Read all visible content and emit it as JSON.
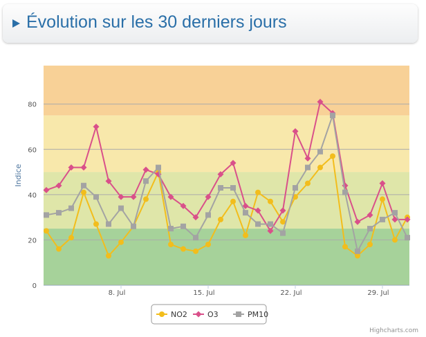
{
  "header": {
    "title": "Évolution sur les 30 derniers jours"
  },
  "chart_data": {
    "type": "line",
    "title": "Évolution sur les 30 derniers jours",
    "xlabel": "",
    "ylabel": "Indice",
    "x": [
      "2 Jul",
      "3 Jul",
      "4 Jul",
      "5 Jul",
      "6 Jul",
      "7 Jul",
      "8 Jul",
      "9 Jul",
      "10 Jul",
      "11 Jul",
      "12 Jul",
      "13 Jul",
      "14 Jul",
      "15 Jul",
      "16 Jul",
      "17 Jul",
      "18 Jul",
      "19 Jul",
      "20 Jul",
      "21 Jul",
      "22 Jul",
      "23 Jul",
      "24 Jul",
      "25 Jul",
      "26 Jul",
      "27 Jul",
      "28 Jul",
      "29 Jul",
      "30 Jul",
      "31 Jul"
    ],
    "xticks": [
      {
        "index": 6,
        "label": "8. Jul"
      },
      {
        "index": 13,
        "label": "15. Jul"
      },
      {
        "index": 20,
        "label": "22. Jul"
      },
      {
        "index": 27,
        "label": "29. Jul"
      }
    ],
    "yticks": [
      0,
      20,
      40,
      60,
      80
    ],
    "ylim": [
      0,
      97
    ],
    "grid": true,
    "bands": [
      {
        "from": 0,
        "to": 25,
        "color": "#a6d29a"
      },
      {
        "from": 25,
        "to": 50,
        "color": "#dfe6a9"
      },
      {
        "from": 50,
        "to": 75,
        "color": "#f8e8ab"
      },
      {
        "from": 75,
        "to": 100,
        "color": "#f8d197"
      }
    ],
    "legend_placement": "bottom-center",
    "series": [
      {
        "name": "NO2",
        "color": "#f2bd1c",
        "marker": "circle",
        "values": [
          24,
          16,
          21,
          41,
          27,
          13,
          19,
          26,
          38,
          50,
          18,
          16,
          15,
          18,
          29,
          37,
          22,
          41,
          37,
          28,
          39,
          45,
          52,
          57,
          17,
          13,
          18,
          38,
          20,
          30
        ]
      },
      {
        "name": "O3",
        "color": "#d9508a",
        "marker": "diamond",
        "values": [
          42,
          44,
          52,
          52,
          70,
          46,
          39,
          39,
          51,
          49,
          39,
          35,
          30,
          39,
          49,
          54,
          35,
          33,
          24,
          33,
          68,
          56,
          81,
          76,
          44,
          28,
          31,
          45,
          29,
          29
        ]
      },
      {
        "name": "PM10",
        "color": "#a3a3a3",
        "marker": "square",
        "values": [
          31,
          32,
          34,
          44,
          39,
          27,
          34,
          26,
          46,
          52,
          25,
          26,
          21,
          31,
          43,
          43,
          32,
          27,
          27,
          23,
          43,
          52,
          59,
          75,
          41,
          15,
          25,
          29,
          32,
          21
        ]
      }
    ]
  },
  "credit": "Highcharts.com"
}
